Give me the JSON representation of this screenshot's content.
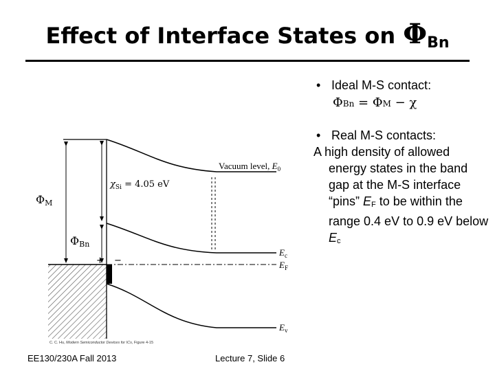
{
  "slide": {
    "title_text": "Effect of Interface States on ",
    "title_phi": "Φ",
    "title_sub": "Bn",
    "bullet1": {
      "marker": "•",
      "label": "Ideal M-S contact:",
      "eq_phi1": "Φ",
      "eq_sub1": "Bn",
      "eq_mid": " = Φ",
      "eq_sub2": "M",
      "eq_end": " − χ"
    },
    "bullet2": {
      "marker": "•",
      "label": "Real M-S contacts:",
      "text_a": "A high density of allowed energy states in the band gap at the M-S interface “pins” ",
      "ef_main": "E",
      "ef_sub": "F",
      "text_b": " to be within the range 0.4 eV to 0.9 eV below ",
      "ec_main": "E",
      "ec_sub": "c"
    }
  },
  "diagram": {
    "label_vacuum_text": "Vacuum level, ",
    "label_vacuum_E": "E",
    "label_vacuum_sub": "0",
    "label_chi": "χ",
    "label_chi_sub": "Si",
    "label_chi_val": " = 4.05 eV",
    "label_phi_M": "Φ",
    "label_phi_M_sub": "M",
    "label_phi_Bn": "Φ",
    "label_phi_Bn_sub": "Bn",
    "label_Ec_main": "E",
    "label_Ec_sub": "c",
    "label_EF_main": "E",
    "label_EF_sub": "F",
    "label_Ev_main": "E",
    "label_Ev_sub": "v",
    "label_plus": "+",
    "label_minus": "−"
  },
  "citation": {
    "author": "C. C. Hu, ",
    "book": "Modern Semiconductor Devices for ICs",
    "fig": ", Figure 4-15"
  },
  "footer": {
    "course": "EE130/230A Fall 2013",
    "slide": "Lecture 7, Slide 6"
  }
}
